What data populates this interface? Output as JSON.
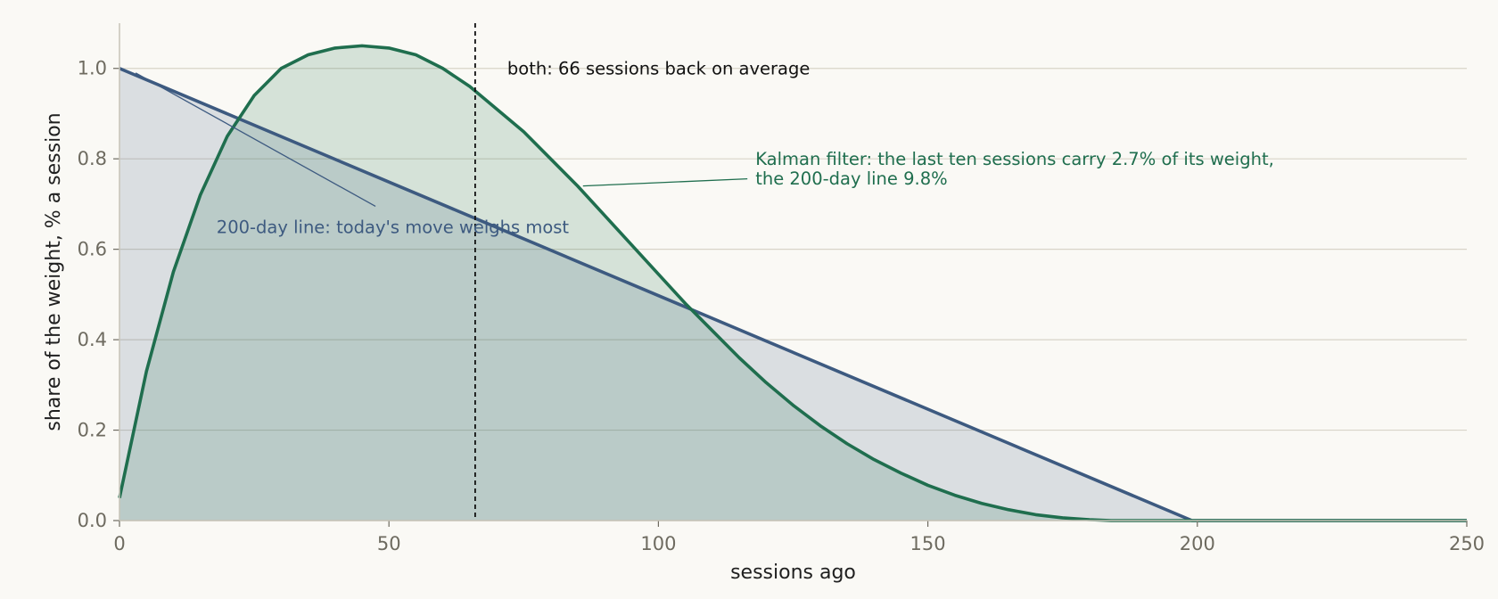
{
  "chart_data": {
    "type": "area",
    "title": "",
    "xlabel": "sessions ago",
    "ylabel": "share of the weight, % a session",
    "xlim": [
      0,
      250
    ],
    "ylim": [
      0,
      1.1
    ],
    "x_ticks": [
      "0",
      "50",
      "100",
      "150",
      "200",
      "250"
    ],
    "y_ticks": [
      "0.0",
      "0.2",
      "0.4",
      "0.6",
      "0.8",
      "1.0"
    ],
    "grid": "horizontal",
    "series": [
      {
        "key": "sma",
        "color": "#3d5a80",
        "x": [
          0,
          199,
          250
        ],
        "y": [
          1.0,
          0.0,
          0.0
        ]
      },
      {
        "key": "kalman",
        "color": "#1f6e4e",
        "x": [
          0,
          5,
          10,
          15,
          20,
          25,
          30,
          35,
          40,
          45,
          50,
          55,
          60,
          65,
          70,
          75,
          80,
          85,
          90,
          95,
          100,
          105,
          110,
          115,
          120,
          125,
          130,
          135,
          140,
          145,
          150,
          155,
          160,
          165,
          170,
          175,
          180,
          184,
          190,
          200,
          250
        ],
        "y": [
          0.05,
          0.33,
          0.55,
          0.72,
          0.85,
          0.94,
          1.0,
          1.03,
          1.045,
          1.05,
          1.045,
          1.03,
          1.0,
          0.96,
          0.91,
          0.86,
          0.8,
          0.74,
          0.675,
          0.61,
          0.545,
          0.48,
          0.42,
          0.36,
          0.305,
          0.255,
          0.21,
          0.17,
          0.135,
          0.105,
          0.078,
          0.056,
          0.038,
          0.024,
          0.013,
          0.006,
          0.002,
          0.0,
          0.0,
          0.0,
          0.0
        ]
      }
    ],
    "reference_line": {
      "x": 66,
      "label": "both: 66 sessions back on average"
    },
    "annotations": [
      {
        "key": "sma_note",
        "text": "200-day line: today's move weighs most",
        "color": "#3d5a80",
        "point_x": 3,
        "point_y": 0.99,
        "text_x": 18,
        "text_y": 0.65
      },
      {
        "key": "kalman_note",
        "lines": [
          "Kalman filter: the last ten sessions carry 2.7% of its weight,",
          "the 200-day line 9.8%"
        ],
        "color": "#1f6e4e",
        "point_x": 86,
        "point_y": 0.74,
        "text_x": 118,
        "text_y": 0.8
      }
    ]
  }
}
